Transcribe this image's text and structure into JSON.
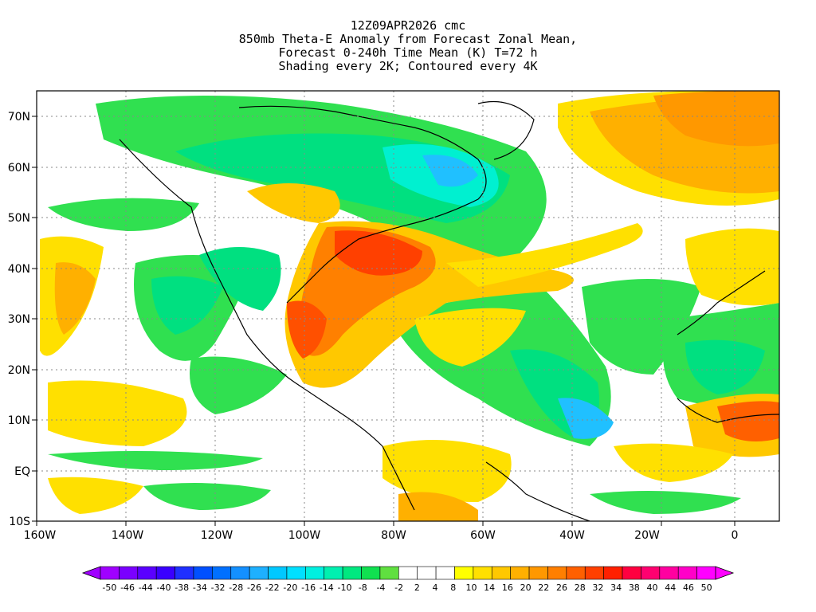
{
  "title": {
    "line1": "12Z09APR2026 cmc",
    "line2": "850mb Theta-E Anomaly from Forecast Zonal Mean,",
    "line3": "Forecast 0-240h Time Mean (K) T=72 h",
    "line4": "Shading every 2K; Contoured every 4K"
  },
  "lat_labels": [
    "70N",
    "60N",
    "50N",
    "40N",
    "30N",
    "20N",
    "10N",
    "EQ",
    "10S"
  ],
  "lon_labels": [
    "160W",
    "140W",
    "120W",
    "100W",
    "80W",
    "60W",
    "40W",
    "20W",
    "0"
  ],
  "colorbar": {
    "labels": [
      "-50",
      "-46",
      "-44",
      "-40",
      "-38",
      "-34",
      "-32",
      "-28",
      "-26",
      "-22",
      "-20",
      "-16",
      "-14",
      "-10",
      "-8",
      "-4",
      "-2",
      "2",
      "4",
      "8",
      "10",
      "14",
      "16",
      "20",
      "22",
      "26",
      "28",
      "32",
      "34",
      "38",
      "40",
      "44",
      "46",
      "50"
    ],
    "colors": [
      "#a000ff",
      "#7a00ff",
      "#5a00ff",
      "#3a00ff",
      "#1f30ff",
      "#0050ff",
      "#0070ff",
      "#1490ff",
      "#1eb0ff",
      "#00c8ff",
      "#00e0ff",
      "#00f0e0",
      "#00f0b0",
      "#00e880",
      "#10e050",
      "#60e040",
      "#ffffff",
      "#ffffff",
      "#ffffff",
      "#ffff00",
      "#ffe000",
      "#ffc800",
      "#ffb000",
      "#ff9800",
      "#ff7f00",
      "#ff6000",
      "#ff4000",
      "#ff2000",
      "#ff0040",
      "#ff0070",
      "#ff00a0",
      "#ff00c8",
      "#ff00ff"
    ]
  }
}
